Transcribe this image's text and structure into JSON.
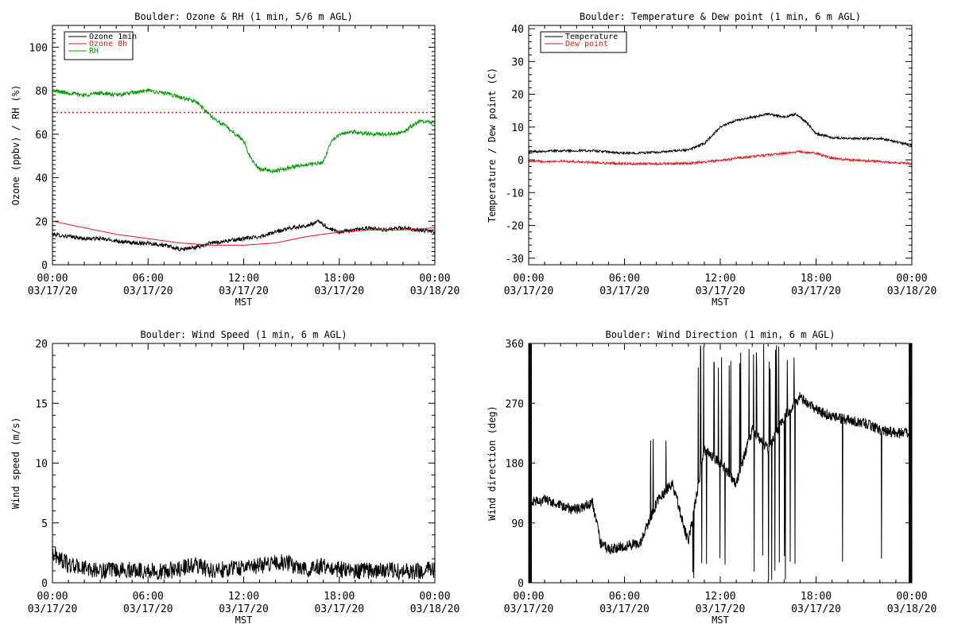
{
  "chart_data": [
    {
      "type": "line",
      "title": "Boulder: Ozone & RH (1 min, 5/6 m AGL)",
      "xlabel": "MST",
      "ylabel": "Ozone (ppbv) / RH (%)",
      "ylim": [
        0,
        110
      ],
      "yticks": [
        "0",
        "20",
        "40",
        "60",
        "80",
        "100"
      ],
      "xlim": [
        "2020-03-17 00:00",
        "2020-03-18 00:00"
      ],
      "xticks": [
        [
          "00:00",
          "03/17/20"
        ],
        [
          "06:00",
          "03/17/20"
        ],
        [
          "12:00",
          "03/17/20"
        ],
        [
          "18:00",
          "03/17/20"
        ],
        [
          "00:00",
          "03/18/20"
        ]
      ],
      "legend_placement": "top-left",
      "reference_line": {
        "y": 70,
        "color": "#e8141b",
        "style": "dotted"
      },
      "series": [
        {
          "name": "Ozone 1min",
          "color": "#000000",
          "x": [
            "00:00",
            "01:00",
            "02:00",
            "03:00",
            "04:00",
            "05:00",
            "06:00",
            "07:00",
            "08:00",
            "09:00",
            "10:00",
            "11:00",
            "12:00",
            "13:00",
            "14:00",
            "15:00",
            "16:00",
            "16:45",
            "17:15",
            "18:00",
            "19:00",
            "20:00",
            "21:00",
            "22:00",
            "23:00",
            "24:00"
          ],
          "y": [
            14,
            13,
            12,
            12,
            11,
            10,
            10,
            9,
            7,
            8,
            10,
            11,
            12,
            13,
            15,
            17,
            18,
            20,
            17,
            15,
            16,
            17,
            16,
            17,
            16,
            15
          ]
        },
        {
          "name": "Ozone 8h",
          "color": "#e8141b",
          "x": [
            "00:00",
            "02:00",
            "04:00",
            "06:00",
            "08:00",
            "10:00",
            "12:00",
            "14:00",
            "16:00",
            "18:00",
            "20:00",
            "22:00",
            "24:00"
          ],
          "y": [
            20,
            17,
            14,
            12,
            10,
            9,
            9,
            10,
            13,
            15,
            16,
            16,
            17
          ]
        },
        {
          "name": "RH",
          "color": "#009b00",
          "x": [
            "00:00",
            "01:00",
            "02:00",
            "03:00",
            "04:00",
            "05:00",
            "06:00",
            "07:00",
            "08:00",
            "09:00",
            "10:00",
            "11:00",
            "12:00",
            "12:30",
            "13:00",
            "14:00",
            "15:00",
            "16:00",
            "17:00",
            "17:30",
            "18:00",
            "19:00",
            "20:00",
            "21:00",
            "22:00",
            "23:00",
            "24:00"
          ],
          "y": [
            80,
            79,
            78,
            79,
            78,
            79,
            80,
            79,
            77,
            75,
            68,
            63,
            57,
            48,
            44,
            43,
            45,
            46,
            47,
            57,
            60,
            61,
            60,
            60,
            61,
            66,
            65
          ]
        }
      ]
    },
    {
      "type": "line",
      "title": "Boulder: Temperature & Dew point (1 min, 6 m AGL)",
      "xlabel": "MST",
      "ylabel": "Temperature / Dew point (C)",
      "ylim": [
        -32,
        41
      ],
      "yticks": [
        "-30",
        "-20",
        "-10",
        "0",
        "10",
        "20",
        "30",
        "40"
      ],
      "xlim": [
        "2020-03-17 00:00",
        "2020-03-18 00:00"
      ],
      "xticks": [
        [
          "00:00",
          "03/17/20"
        ],
        [
          "06:00",
          "03/17/20"
        ],
        [
          "12:00",
          "03/17/20"
        ],
        [
          "18:00",
          "03/17/20"
        ],
        [
          "00:00",
          "03/18/20"
        ]
      ],
      "legend_placement": "top-left",
      "series": [
        {
          "name": "Temperature",
          "color": "#000000",
          "x": [
            "00:00",
            "02:00",
            "04:00",
            "06:00",
            "08:00",
            "10:00",
            "11:00",
            "12:00",
            "13:00",
            "14:00",
            "15:00",
            "16:00",
            "16:45",
            "17:30",
            "18:00",
            "19:00",
            "20:00",
            "22:00",
            "24:00"
          ],
          "y": [
            2.5,
            2.8,
            2.8,
            2,
            2.3,
            3,
            5,
            10,
            12,
            13,
            14,
            13,
            14,
            11,
            8,
            6.8,
            6.5,
            6.5,
            4.5
          ]
        },
        {
          "name": "Dew point",
          "color": "#e8141b",
          "x": [
            "00:00",
            "02:00",
            "04:00",
            "06:00",
            "08:00",
            "10:00",
            "12:00",
            "13:00",
            "14:00",
            "15:00",
            "16:00",
            "17:00",
            "18:00",
            "19:00",
            "20:00",
            "22:00",
            "24:00"
          ],
          "y": [
            -0.5,
            -0.4,
            -0.8,
            -1.2,
            -1.2,
            -1.1,
            -0.2,
            0.5,
            1,
            1.5,
            2,
            2.5,
            2,
            0.5,
            0,
            -0.5,
            -1.2
          ]
        }
      ]
    },
    {
      "type": "line",
      "title": "Boulder: Wind Speed (1 min, 6 m AGL)",
      "xlabel": "MST",
      "ylabel": "Wind speed (m/s)",
      "ylim": [
        0,
        20
      ],
      "yticks": [
        "0",
        "5",
        "10",
        "15",
        "20"
      ],
      "xlim": [
        "2020-03-17 00:00",
        "2020-03-18 00:00"
      ],
      "xticks": [
        [
          "00:00",
          "03/17/20"
        ],
        [
          "06:00",
          "03/17/20"
        ],
        [
          "12:00",
          "03/17/20"
        ],
        [
          "18:00",
          "03/17/20"
        ],
        [
          "00:00",
          "03/18/20"
        ]
      ],
      "series": [
        {
          "color": "#000000",
          "x": [
            "00:00",
            "01:00",
            "02:00",
            "03:00",
            "04:00",
            "05:00",
            "06:00",
            "07:00",
            "08:00",
            "09:00",
            "10:00",
            "11:00",
            "12:00",
            "13:00",
            "14:00",
            "15:00",
            "16:00",
            "17:00",
            "18:00",
            "19:00",
            "20:00",
            "21:00",
            "22:00",
            "23:00",
            "24:00"
          ],
          "y": [
            2.5,
            1.5,
            1.2,
            1,
            1,
            1.1,
            1,
            0.9,
            1.2,
            1.5,
            1,
            1.2,
            1.3,
            1.4,
            1.8,
            1.5,
            1.2,
            1.4,
            1.1,
            1,
            1,
            1.1,
            0.9,
            1,
            1.1
          ]
        }
      ]
    },
    {
      "type": "line",
      "title": "Boulder: Wind Direction (1 min, 6 m AGL)",
      "xlabel": "MST",
      "ylabel": "Wind direction (deg)",
      "ylim": [
        0,
        360
      ],
      "yticks": [
        "0",
        "90",
        "180",
        "270",
        "360"
      ],
      "xlim": [
        "2020-03-17 00:00",
        "2020-03-18 00:00"
      ],
      "xticks": [
        [
          "00:00",
          "03/17/20"
        ],
        [
          "06:00",
          "03/17/20"
        ],
        [
          "12:00",
          "03/17/20"
        ],
        [
          "18:00",
          "03/17/20"
        ],
        [
          "00:00",
          "03/18/20"
        ]
      ],
      "series": [
        {
          "color": "#000000",
          "x": [
            "00:00",
            "01:00",
            "02:00",
            "03:00",
            "04:00",
            "04:30",
            "05:00",
            "06:00",
            "07:00",
            "08:00",
            "09:00",
            "10:00",
            "11:00",
            "12:00",
            "13:00",
            "14:00",
            "15:00",
            "16:00",
            "17:00",
            "18:00",
            "19:00",
            "20:00",
            "21:00",
            "22:00",
            "23:00",
            "24:00"
          ],
          "y": [
            120,
            125,
            115,
            110,
            120,
            60,
            50,
            55,
            60,
            120,
            150,
            60,
            200,
            180,
            150,
            230,
            200,
            250,
            280,
            260,
            250,
            245,
            240,
            230,
            225,
            225
          ]
        }
      ]
    }
  ]
}
